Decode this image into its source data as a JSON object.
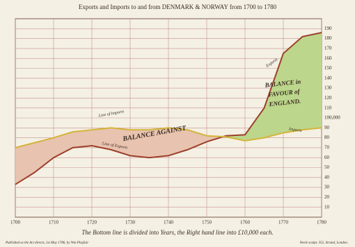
{
  "chart_data": {
    "type": "line",
    "title": "Exports and Imports to and from DENMARK & NORWAY from 1700 to 1780",
    "x_axis_label": "The Bottom line is divided into Years, the Right hand line into £10,000 each.",
    "footnote_left": "Published as the Act directs, 1st May 1786, by Wm Playfair",
    "footnote_right": "Neele sculpt. 352, Strand, London.",
    "x": [
      1700,
      1705,
      1710,
      1715,
      1720,
      1725,
      1730,
      1735,
      1740,
      1745,
      1750,
      1755,
      1760,
      1765,
      1770,
      1775,
      1780
    ],
    "series": [
      {
        "name": "Exports",
        "color": "#9c3f2a",
        "values": [
          33,
          45,
          60,
          70,
          72,
          68,
          62,
          60,
          62,
          68,
          76,
          82,
          83,
          110,
          165,
          182,
          186
        ]
      },
      {
        "name": "Imports",
        "color": "#d4b43a",
        "values": [
          70,
          75,
          80,
          86,
          88,
          90,
          88,
          88,
          90,
          88,
          82,
          81,
          77,
          80,
          85,
          88,
          90
        ]
      }
    ],
    "annotations": [
      "BALANCE AGAINST",
      "BALANCE in FAVOUR of ENGLAND.",
      "Line of Imports",
      "Line of Exports"
    ],
    "xlim": [
      1700,
      1780
    ],
    "xticks": [
      1700,
      1710,
      1720,
      1730,
      1740,
      1750,
      1760,
      1770,
      1780
    ],
    "ylim": [
      0,
      200
    ],
    "yticks": [
      10,
      20,
      30,
      40,
      50,
      60,
      70,
      80,
      90,
      {
        "value": 100,
        "label": "100,000"
      },
      110,
      120,
      130,
      140,
      150,
      160,
      170,
      180,
      190
    ],
    "grid": true,
    "fill_against": "#e7c3b0",
    "fill_favour": "#bcd68c"
  }
}
